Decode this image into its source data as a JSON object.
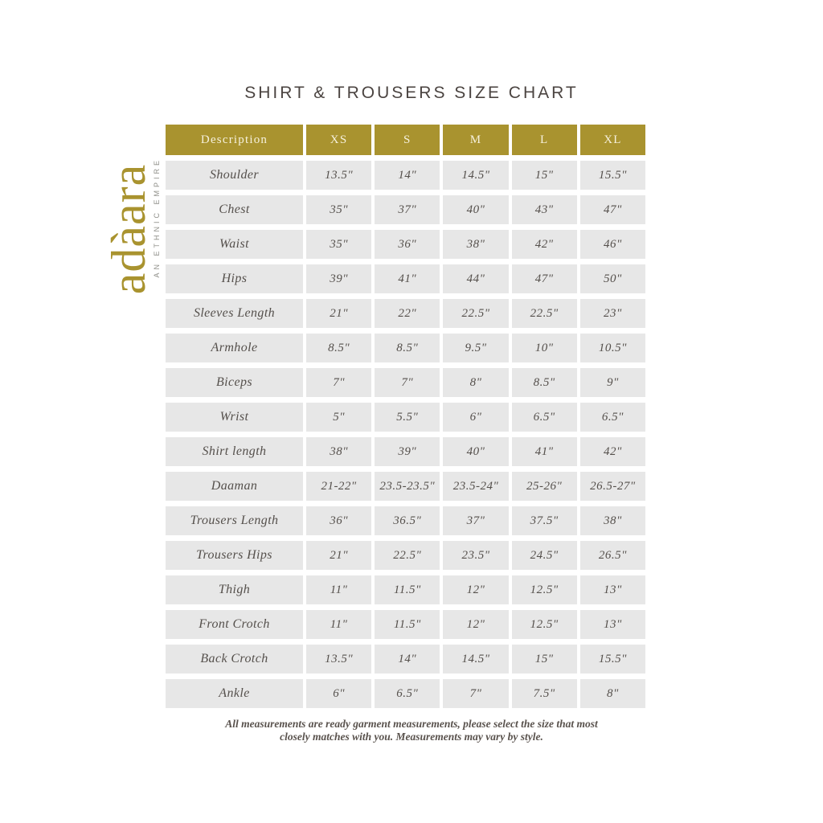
{
  "page": {
    "title": "SHIRT & TROUSERS SIZE CHART",
    "footer_line1": "All measurements are ready garment measurements, please select the size that most",
    "footer_line2": "closely matches with you. Measurements may vary by style."
  },
  "logo": {
    "brand": "adàara",
    "tagline": "AN ETHNIC EMPIRE"
  },
  "colors": {
    "gold": "#a9932f",
    "header_text": "#f6f1dd",
    "cell_background": "#e7e7e7",
    "cell_text": "#55504c",
    "title_text": "#4b4441"
  },
  "table": {
    "columns": [
      "Description",
      "XS",
      "S",
      "M",
      "L",
      "XL"
    ],
    "rows": [
      {
        "label": "Shoulder",
        "values": [
          "13.5\"",
          "14\"",
          "14.5\"",
          "15\"",
          "15.5\""
        ]
      },
      {
        "label": "Chest",
        "values": [
          "35\"",
          "37\"",
          "40\"",
          "43\"",
          "47\""
        ]
      },
      {
        "label": "Waist",
        "values": [
          "35\"",
          "36\"",
          "38\"",
          "42\"",
          "46\""
        ]
      },
      {
        "label": "Hips",
        "values": [
          "39\"",
          "41\"",
          "44\"",
          "47\"",
          "50\""
        ]
      },
      {
        "label": "Sleeves Length",
        "values": [
          "21\"",
          "22\"",
          "22.5\"",
          "22.5\"",
          "23\""
        ]
      },
      {
        "label": "Armhole",
        "values": [
          "8.5\"",
          "8.5\"",
          "9.5\"",
          "10\"",
          "10.5\""
        ]
      },
      {
        "label": "Biceps",
        "values": [
          "7\"",
          "7\"",
          "8\"",
          "8.5\"",
          "9\""
        ]
      },
      {
        "label": "Wrist",
        "values": [
          "5\"",
          "5.5\"",
          "6\"",
          "6.5\"",
          "6.5\""
        ]
      },
      {
        "label": "Shirt length",
        "values": [
          "38\"",
          "39\"",
          "40\"",
          "41\"",
          "42\""
        ]
      },
      {
        "label": "Daaman",
        "values": [
          "21-22\"",
          "23.5-23.5\"",
          "23.5-24\"",
          "25-26\"",
          "26.5-27\""
        ]
      },
      {
        "label": "Trousers Length",
        "values": [
          "36\"",
          "36.5\"",
          "37\"",
          "37.5\"",
          "38\""
        ]
      },
      {
        "label": "Trousers Hips",
        "values": [
          "21\"",
          "22.5\"",
          "23.5\"",
          "24.5\"",
          "26.5\""
        ]
      },
      {
        "label": "Thigh",
        "values": [
          "11\"",
          "11.5\"",
          "12\"",
          "12.5\"",
          "13\""
        ]
      },
      {
        "label": "Front Crotch",
        "values": [
          "11\"",
          "11.5\"",
          "12\"",
          "12.5\"",
          "13\""
        ]
      },
      {
        "label": "Back Crotch",
        "values": [
          "13.5\"",
          "14\"",
          "14.5\"",
          "15\"",
          "15.5\""
        ]
      },
      {
        "label": "Ankle",
        "values": [
          "6\"",
          "6.5\"",
          "7\"",
          "7.5\"",
          "8\""
        ]
      }
    ]
  }
}
